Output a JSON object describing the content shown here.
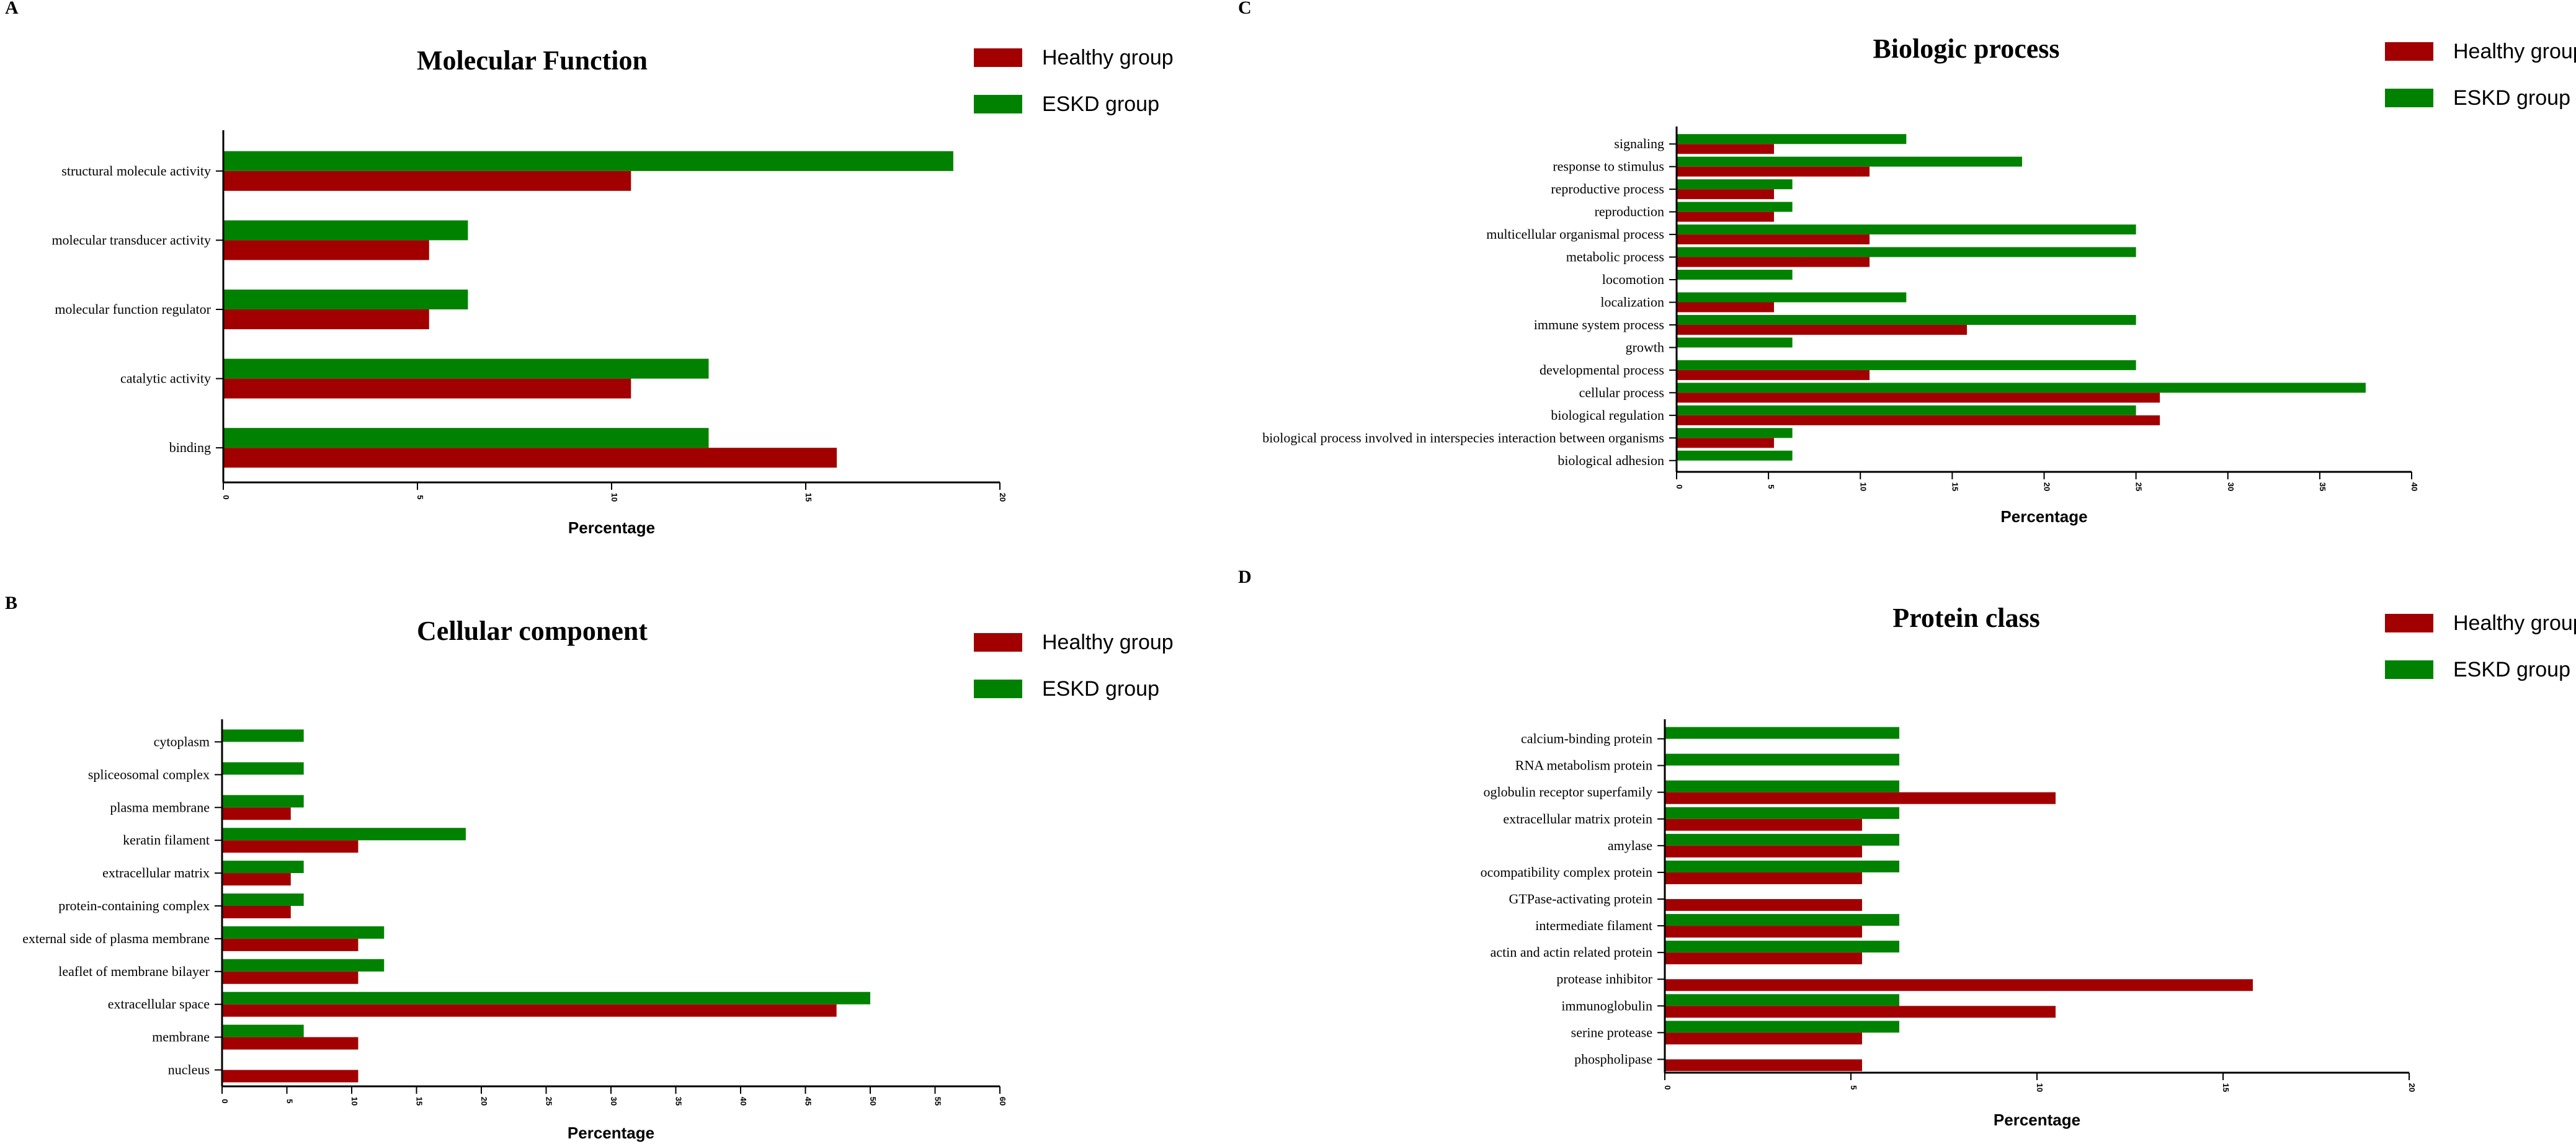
{
  "colors": {
    "healthy": "#a20000",
    "eskd": "#008200"
  },
  "chart_data": [
    {
      "panel": "A",
      "type": "bar",
      "orientation": "horizontal",
      "title": "Molecular Function",
      "xlabel": "Percentage",
      "xlim": [
        0,
        20
      ],
      "xticks": [
        0,
        5,
        10,
        15,
        20
      ],
      "categories": [
        "structural molecule activity",
        "molecular transducer activity",
        "molecular function regulator",
        "catalytic activity",
        "binding"
      ],
      "series": [
        {
          "name": "Healthy group",
          "values": [
            10.5,
            5.3,
            5.3,
            10.5,
            15.8
          ]
        },
        {
          "name": "ESKD group",
          "values": [
            18.8,
            6.3,
            6.3,
            12.5,
            12.5
          ]
        }
      ],
      "legend": "top-right"
    },
    {
      "panel": "B",
      "type": "bar",
      "orientation": "horizontal",
      "title": "Cellular component",
      "xlabel": "Percentage",
      "xlim": [
        0,
        60
      ],
      "xticks": [
        0,
        5,
        10,
        15,
        20,
        25,
        30,
        35,
        40,
        45,
        50,
        55,
        60
      ],
      "categories": [
        "cytoplasm",
        "spliceosomal complex",
        "plasma membrane",
        "keratin filament",
        "extracellular matrix",
        "protein-containing complex",
        "external side of plasma membrane",
        "leaflet of membrane bilayer",
        "extracellular space",
        "membrane",
        "nucleus"
      ],
      "series": [
        {
          "name": "Healthy group",
          "values": [
            0,
            0,
            5.3,
            10.5,
            5.3,
            5.3,
            10.5,
            10.5,
            47.4,
            10.5,
            10.5
          ]
        },
        {
          "name": "ESKD group",
          "values": [
            6.3,
            6.3,
            6.3,
            18.8,
            6.3,
            6.3,
            12.5,
            12.5,
            50.0,
            6.3,
            0
          ]
        }
      ],
      "legend": "top-right"
    },
    {
      "panel": "C",
      "type": "bar",
      "orientation": "horizontal",
      "title": "Biologic process",
      "xlabel": "Percentage",
      "xlim": [
        0,
        40
      ],
      "xticks": [
        0,
        5,
        10,
        15,
        20,
        25,
        30,
        35,
        40
      ],
      "categories": [
        "signaling",
        "response to stimulus",
        "reproductive process",
        "reproduction",
        "multicellular organismal process",
        "metabolic process",
        "locomotion",
        "localization",
        "immune system process",
        "growth",
        "developmental process",
        "cellular process",
        "biological regulation",
        "biological process involved in interspecies interaction between organisms",
        "biological adhesion"
      ],
      "series": [
        {
          "name": "Healthy group",
          "values": [
            5.3,
            10.5,
            5.3,
            5.3,
            10.5,
            10.5,
            0,
            5.3,
            15.8,
            0,
            10.5,
            26.3,
            26.3,
            5.3,
            0
          ]
        },
        {
          "name": "ESKD group",
          "values": [
            12.5,
            18.8,
            6.3,
            6.3,
            25.0,
            25.0,
            6.3,
            12.5,
            25.0,
            6.3,
            25.0,
            37.5,
            25.0,
            6.3,
            6.3
          ]
        }
      ],
      "legend": "top-right"
    },
    {
      "panel": "D",
      "type": "bar",
      "orientation": "horizontal",
      "title": "Protein class",
      "xlabel": "Percentage",
      "xlim": [
        0,
        20
      ],
      "xticks": [
        0,
        5,
        10,
        15,
        20
      ],
      "categories": [
        "calcium-binding protein",
        "RNA metabolism protein",
        "oglobulin receptor superfamily",
        "extracellular matrix protein",
        "amylase",
        "ocompatibility complex protein",
        "GTPase-activating protein",
        "intermediate filament",
        "actin and actin related protein",
        "protease inhibitor",
        "immunoglobulin",
        "serine protease",
        "phospholipase"
      ],
      "series": [
        {
          "name": "Healthy group",
          "values": [
            0,
            0,
            10.5,
            5.3,
            5.3,
            5.3,
            5.3,
            5.3,
            5.3,
            15.8,
            10.5,
            5.3,
            5.3
          ]
        },
        {
          "name": "ESKD group",
          "values": [
            6.3,
            6.3,
            6.3,
            6.3,
            6.3,
            6.3,
            0,
            6.3,
            6.3,
            0,
            6.3,
            6.3,
            0
          ]
        }
      ],
      "legend": "top-right"
    }
  ]
}
